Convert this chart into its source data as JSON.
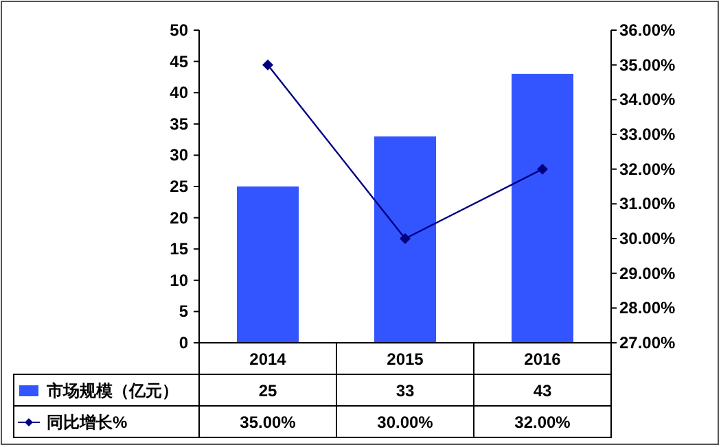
{
  "chart_data": {
    "type": "bar",
    "categories": [
      "2014",
      "2015",
      "2016"
    ],
    "series": [
      {
        "name": "市场规模（亿元）",
        "color": "#3355ff",
        "values": [
          25,
          33,
          43
        ],
        "value_labels": [
          "25",
          "33",
          "43"
        ]
      },
      {
        "name": "同比增长%",
        "type": "line",
        "axis": "y2",
        "color": "#000080",
        "marker": "diamond",
        "values": [
          35,
          30,
          32
        ],
        "value_labels": [
          "35.00%",
          "30.00%",
          "32.00%"
        ]
      }
    ],
    "ylim": [
      0,
      50
    ],
    "yticks": [
      0,
      5,
      10,
      15,
      20,
      25,
      30,
      35,
      40,
      45,
      50
    ],
    "y2lim": [
      27,
      36
    ],
    "y2ticks": [
      {
        "value": 27,
        "label": "27.00%"
      },
      {
        "value": 28,
        "label": "28.00%"
      },
      {
        "value": 29,
        "label": "29.00%"
      },
      {
        "value": 30,
        "label": "30.00%"
      },
      {
        "value": 31,
        "label": "31.00%"
      },
      {
        "value": 32,
        "label": "32.00%"
      },
      {
        "value": 33,
        "label": "33.00%"
      },
      {
        "value": 34,
        "label": "34.00%"
      },
      {
        "value": 35,
        "label": "35.00%"
      },
      {
        "value": 36,
        "label": "36.00%"
      }
    ],
    "legend": "bottom"
  }
}
